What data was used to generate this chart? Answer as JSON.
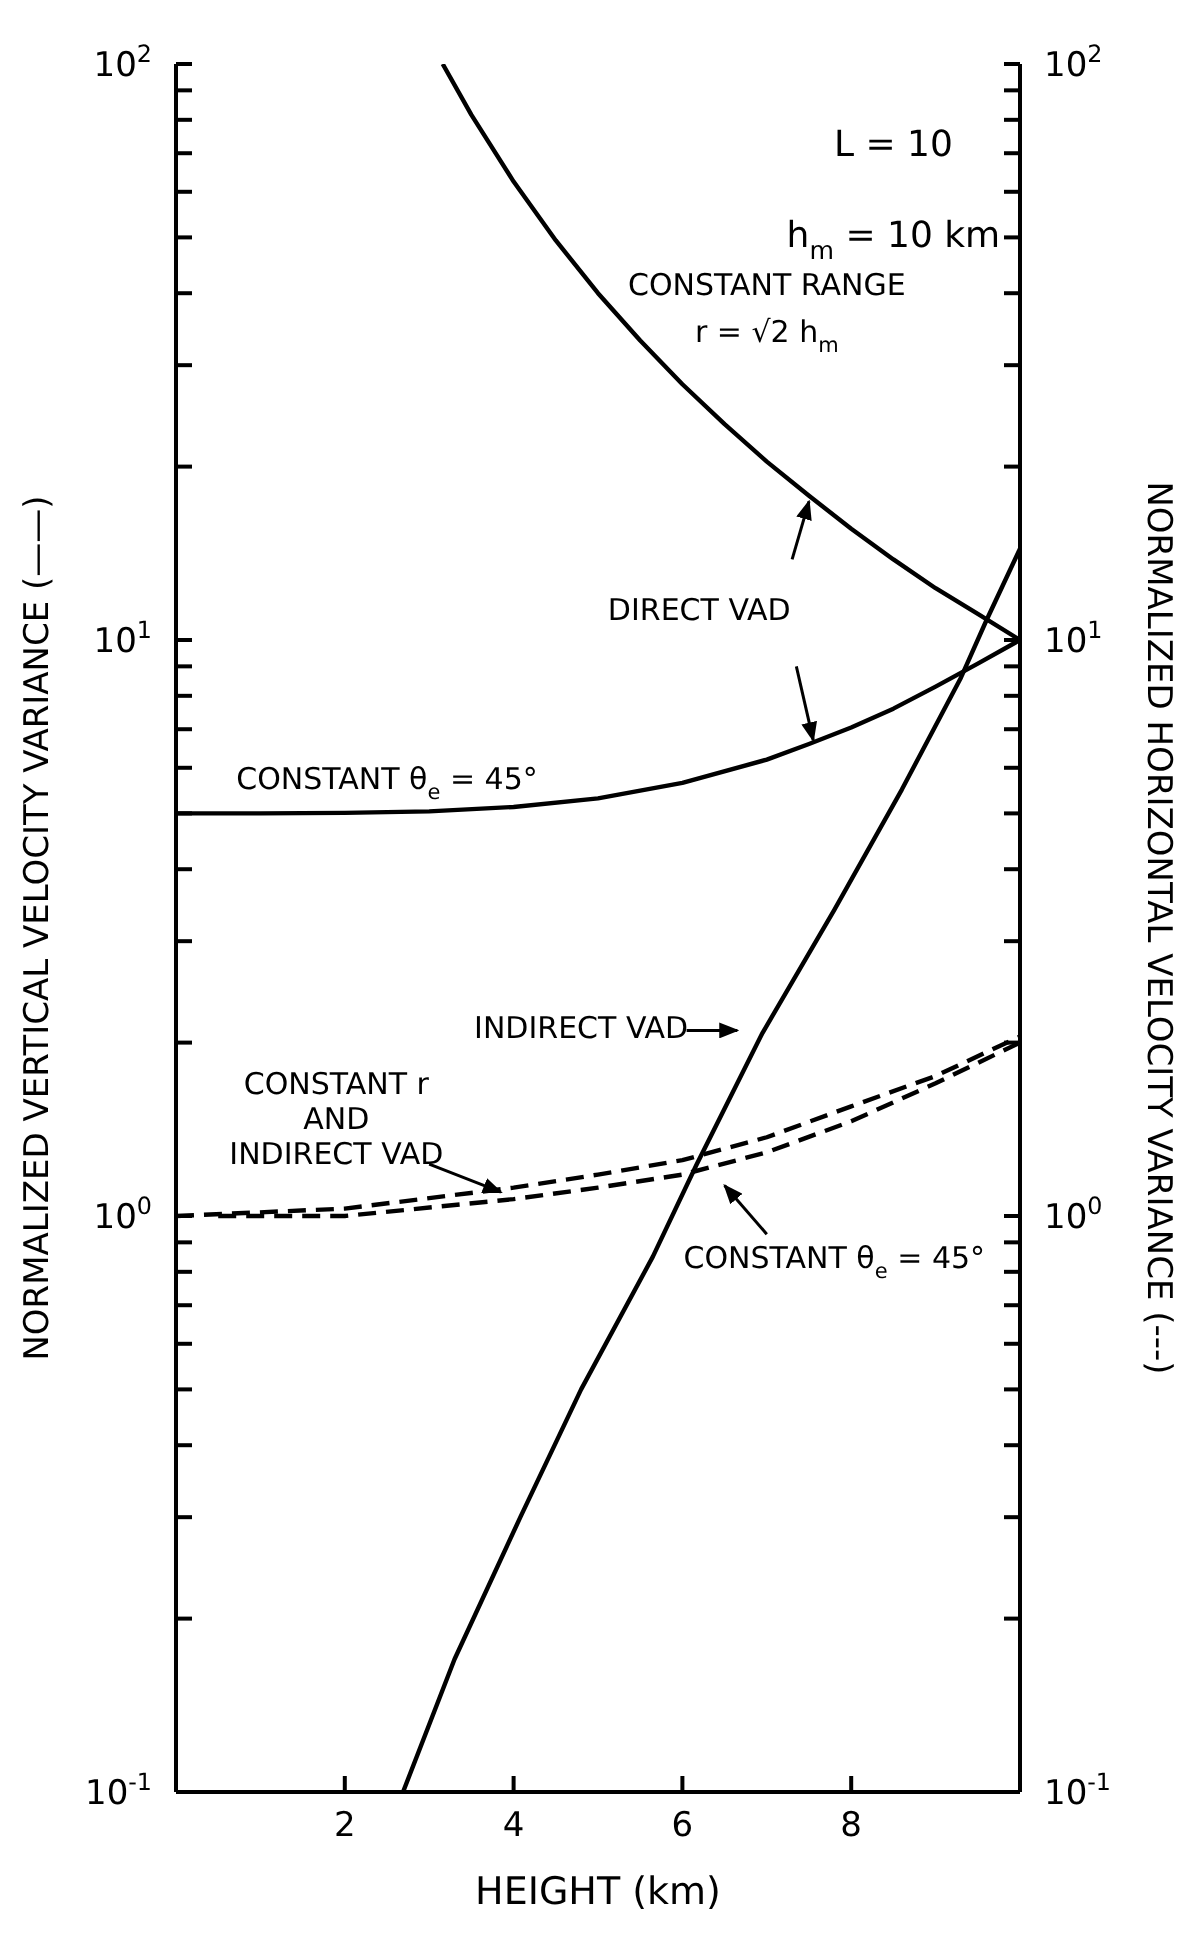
{
  "chart_data": {
    "type": "line",
    "xlabel": "HEIGHT (km)",
    "ylabel": "NORMALIZED VERTICAL VELOCITY VARIANCE (——)",
    "y2label": "NORMALIZED HORIZONTAL VELOCITY VARIANCE (---)",
    "xlim": [
      0,
      10
    ],
    "xticks": [
      2,
      4,
      6,
      8
    ],
    "log": "y",
    "ylim": [
      0.1,
      100
    ],
    "yticks": [
      {
        "value": 0.1,
        "label": "10$^{-1}$"
      },
      {
        "value": 0.2,
        "label": null
      },
      {
        "value": 0.3,
        "label": null
      },
      {
        "value": 0.4,
        "label": null
      },
      {
        "value": 0.5,
        "label": null
      },
      {
        "value": 0.6,
        "label": null
      },
      {
        "value": 0.7,
        "label": null
      },
      {
        "value": 0.8,
        "label": null
      },
      {
        "value": 0.9,
        "label": null
      },
      {
        "value": 1,
        "label": "10$^{0}$"
      },
      {
        "value": 2,
        "label": null
      },
      {
        "value": 3,
        "label": null
      },
      {
        "value": 4,
        "label": null
      },
      {
        "value": 5,
        "label": null
      },
      {
        "value": 6,
        "label": null
      },
      {
        "value": 7,
        "label": null
      },
      {
        "value": 8,
        "label": null
      },
      {
        "value": 9,
        "label": null
      },
      {
        "value": 10,
        "label": "10$^{1}$"
      },
      {
        "value": 20,
        "label": null
      },
      {
        "value": 30,
        "label": null
      },
      {
        "value": 40,
        "label": null
      },
      {
        "value": 50,
        "label": null
      },
      {
        "value": 60,
        "label": null
      },
      {
        "value": 70,
        "label": null
      },
      {
        "value": 80,
        "label": null
      },
      {
        "value": 90,
        "label": null
      },
      {
        "value": 100,
        "label": "10$^{2}$"
      }
    ],
    "marker": "none",
    "series": [
      {
        "color": "#000000",
        "line_style": "solid",
        "x": [
          3.16,
          3.5,
          4,
          4.5,
          5,
          5.5,
          6,
          6.5,
          7,
          7.5,
          8,
          8.5,
          9,
          9.5,
          10
        ],
        "values": [
          100,
          81.6,
          62.5,
          49.4,
          40,
          33.1,
          27.8,
          23.7,
          20.4,
          17.8,
          15.6,
          13.8,
          12.3,
          11.1,
          10
        ]
      },
      {
        "color": "#000000",
        "line_style": "solid",
        "x": [
          0,
          1,
          2,
          3,
          4,
          5,
          6,
          7,
          7.5,
          8,
          8.5,
          9,
          9.5,
          10
        ],
        "values": [
          5,
          5,
          5.01,
          5.04,
          5.13,
          5.31,
          5.65,
          6.2,
          6.6,
          7.05,
          7.6,
          8.3,
          9.1,
          10
        ]
      },
      {
        "color": "#000000",
        "line_style": "solid",
        "x": [
          2.69,
          3.3,
          4.08,
          4.8,
          5.65,
          6.17,
          6.95,
          7.8,
          8.6,
          9.3,
          9.6,
          10
        ],
        "values": [
          0.1,
          0.17,
          0.3,
          0.5,
          0.85,
          1.23,
          2.08,
          3.4,
          5.5,
          8.6,
          10.8,
          14.4
        ]
      },
      {
        "color": "#000000",
        "line_style": "dashed",
        "x": [
          0,
          2,
          4,
          5,
          6,
          7,
          8,
          9,
          10
        ],
        "values": [
          1,
          1.03,
          1.12,
          1.18,
          1.25,
          1.37,
          1.55,
          1.75,
          2.05
        ]
      },
      {
        "color": "#000000",
        "line_style": "dashed",
        "x": [
          0.5,
          2,
          4,
          5,
          6,
          7,
          8,
          9,
          10
        ],
        "values": [
          1,
          1,
          1.07,
          1.12,
          1.18,
          1.29,
          1.46,
          1.7,
          2
        ]
      }
    ],
    "annotations": [
      "L = 10",
      "h$_{m}$ = 10 km",
      "CONSTANT RANGE",
      "r = √2 h$_{m}$",
      "DIRECT VAD",
      "CONSTANT θ$_{e}$ = 45°",
      "INDIRECT VAD",
      "CONSTANT r",
      "AND",
      "INDIRECT VAD",
      "CONSTANT θ$_{e}$ = 45°"
    ]
  }
}
